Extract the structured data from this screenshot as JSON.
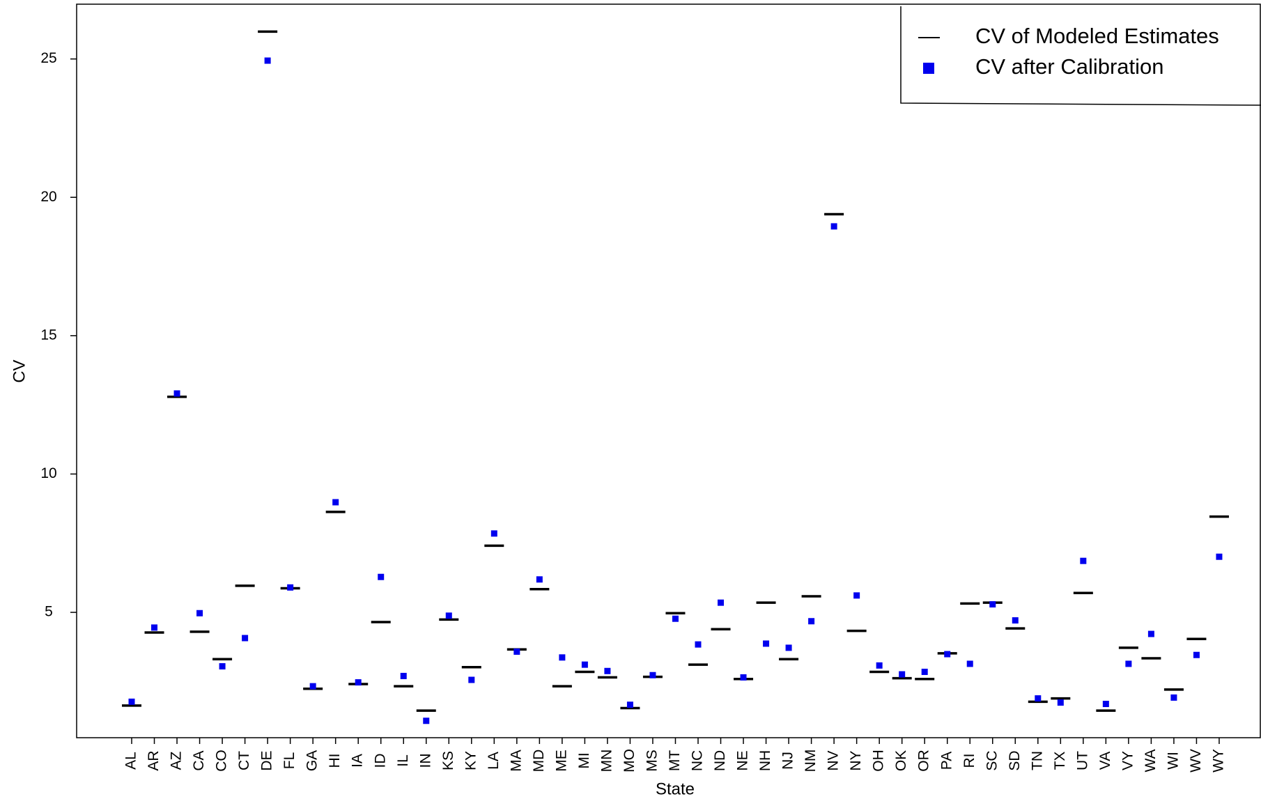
{
  "chart_data": {
    "type": "dot-dash",
    "x_label": "State",
    "y_label": "CV",
    "categories": [
      "AL",
      "AR",
      "AZ",
      "CA",
      "CO",
      "CT",
      "DE",
      "FL",
      "GA",
      "HI",
      "IA",
      "ID",
      "IL",
      "IN",
      "KS",
      "KY",
      "LA",
      "MA",
      "MD",
      "ME",
      "MI",
      "MN",
      "MO",
      "MS",
      "MT",
      "NC",
      "ND",
      "NE",
      "NH",
      "NJ",
      "NM",
      "NV",
      "NY",
      "OH",
      "OK",
      "OR",
      "PA",
      "RI",
      "SC",
      "SD",
      "TN",
      "TX",
      "UT",
      "VA",
      "VY",
      "WA",
      "WI",
      "WV",
      "WY"
    ],
    "series": [
      {
        "name": "CV of Modeled Estimates",
        "color": "#000000",
        "marker": "dash",
        "values": [
          1.63,
          4.27,
          12.79,
          4.3,
          3.31,
          5.96,
          25.99,
          5.87,
          2.24,
          8.63,
          2.41,
          4.65,
          2.33,
          1.45,
          4.74,
          3.02,
          7.41,
          3.66,
          5.84,
          2.33,
          2.85,
          2.65,
          1.54,
          2.67,
          4.97,
          3.11,
          4.39,
          2.59,
          5.35,
          3.31,
          5.58,
          19.39,
          4.33,
          2.85,
          2.62,
          2.59,
          3.52,
          5.32,
          5.35,
          4.42,
          1.77,
          1.89,
          5.7,
          1.45,
          3.72,
          3.34,
          2.21,
          4.04,
          8.46
        ]
      },
      {
        "name": "CV after Calibration",
        "color": "#0000ee",
        "marker": "square",
        "values": [
          1.77,
          4.45,
          12.91,
          4.97,
          3.05,
          4.07,
          24.94,
          5.9,
          2.33,
          8.98,
          2.47,
          6.28,
          2.7,
          1.08,
          4.88,
          2.56,
          7.85,
          3.58,
          6.19,
          3.37,
          3.11,
          2.88,
          1.66,
          2.73,
          4.77,
          3.84,
          5.35,
          2.65,
          3.87,
          3.72,
          4.68,
          18.95,
          5.61,
          3.08,
          2.76,
          2.85,
          3.49,
          3.14,
          5.29,
          4.71,
          1.89,
          1.74,
          6.86,
          1.69,
          3.14,
          4.22,
          1.92,
          3.46,
          7.01
        ]
      }
    ],
    "ylim": [
      0.47,
      26.98
    ],
    "yticks": [
      5,
      10,
      15,
      20,
      25
    ],
    "legend_position": "top-right"
  }
}
